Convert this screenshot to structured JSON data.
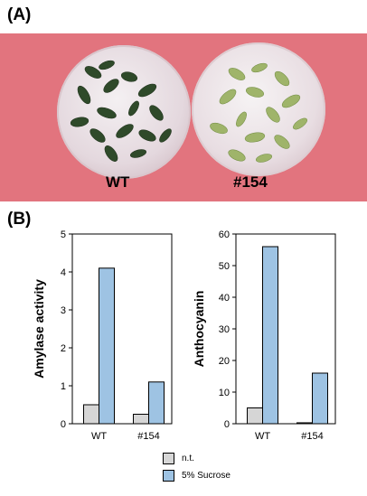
{
  "panels": {
    "a": "(A)",
    "b": "(B)"
  },
  "photo": {
    "labels": [
      "WT",
      "#154"
    ]
  },
  "legend": {
    "items": [
      {
        "label": "n.t.",
        "color": "#d6d6d6"
      },
      {
        "label": "5% Sucrose",
        "color": "#9ec3e3"
      }
    ]
  },
  "chart_data": [
    {
      "type": "bar",
      "categories": [
        "WT",
        "#154"
      ],
      "ylabel": "Amylase activity",
      "ylim": [
        0,
        5
      ],
      "yticks": [
        "0",
        "1",
        "2",
        "3",
        "4",
        "5"
      ],
      "series": [
        {
          "name": "n.t.",
          "values": [
            0.5,
            0.25
          ]
        },
        {
          "name": "5% Sucrose",
          "values": [
            4.1,
            1.1
          ]
        }
      ]
    },
    {
      "type": "bar",
      "categories": [
        "WT",
        "#154"
      ],
      "ylabel": "Anthocyanin",
      "ylim": [
        0,
        60
      ],
      "yticks": [
        "0",
        "10",
        "20",
        "30",
        "40",
        "50",
        "60"
      ],
      "series": [
        {
          "name": "n.t.",
          "values": [
            5,
            0.3
          ]
        },
        {
          "name": "5% Sucrose",
          "values": [
            56,
            16
          ]
        }
      ]
    }
  ]
}
